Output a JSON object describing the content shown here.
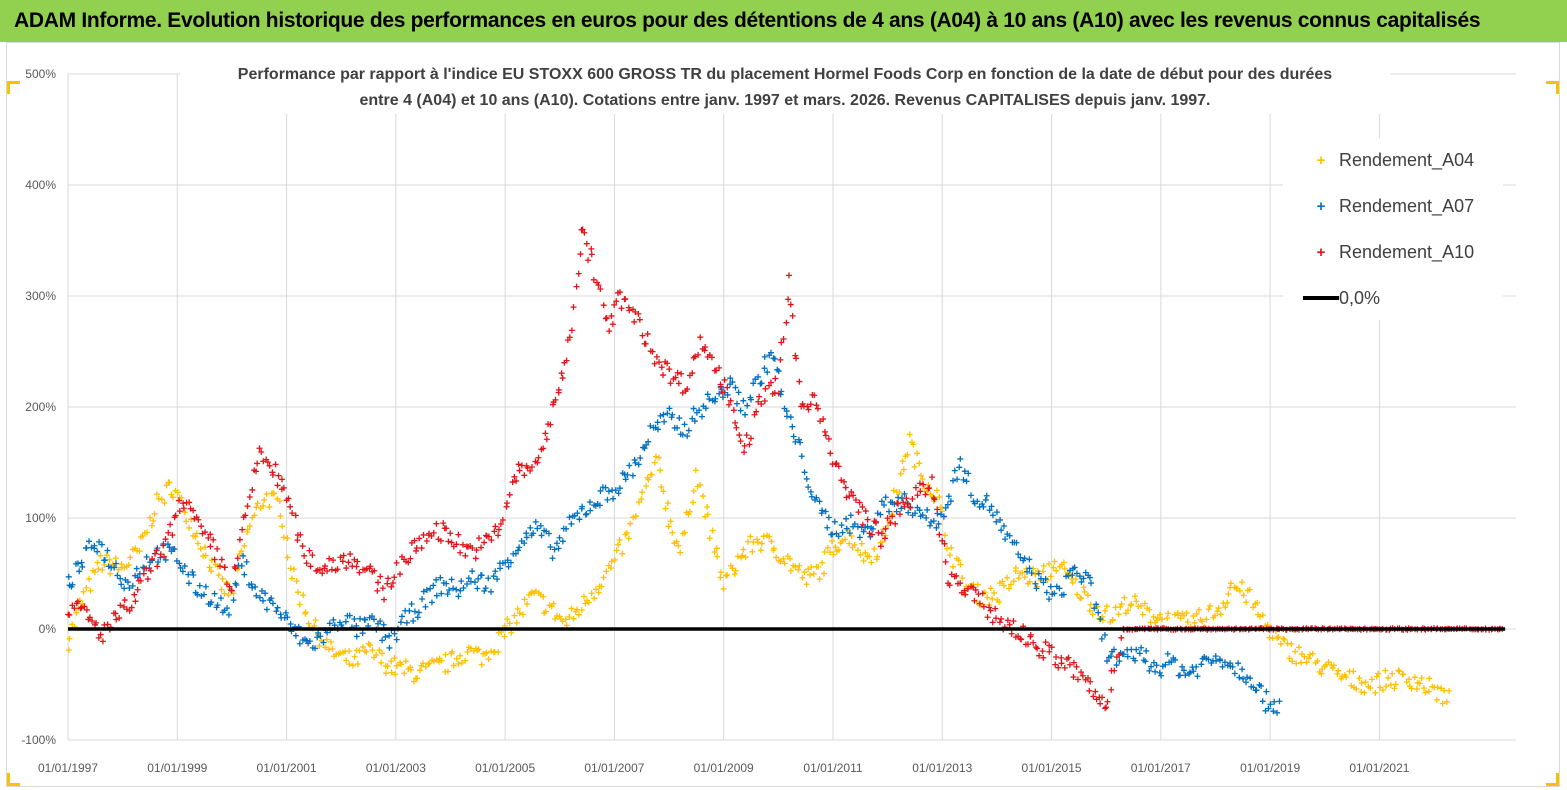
{
  "header": {
    "title": "ADAM Informe. Evolution historique des performances en euros pour des détentions de 4 ans (A04) à 10 ans (A10) avec les revenus connus capitalisés"
  },
  "chart_data": {
    "type": "scatter",
    "title_line1": "Performance par rapport à l'indice EU STOXX 600 GROSS TR  du placement Hormel Foods Corp en fonction de la date de début pour des durées",
    "title_line2": "entre 4 (A04) et 10 ans (A10). Cotations entre janv. 1997 et mars. 2026. Revenus CAPITALISES depuis janv. 1997.",
    "ylim": [
      -100,
      500
    ],
    "y_ticks": [
      -100,
      0,
      100,
      200,
      300,
      400,
      500
    ],
    "y_tick_labels": [
      "-100%",
      "0%",
      "100%",
      "200%",
      "300%",
      "400%",
      "500%"
    ],
    "xlim": [
      1997.0,
      2023.5
    ],
    "x_ticks": [
      1997,
      1999,
      2001,
      2003,
      2005,
      2007,
      2009,
      2011,
      2013,
      2015,
      2017,
      2019,
      2021
    ],
    "x_tick_labels": [
      "01/01/1997",
      "01/01/1999",
      "01/01/2001",
      "01/01/2003",
      "01/01/2005",
      "01/01/2007",
      "01/01/2009",
      "01/01/2011",
      "01/01/2013",
      "01/01/2015",
      "01/01/2017",
      "01/01/2019",
      "01/01/2021"
    ],
    "legend_position": "top-right",
    "series": [
      {
        "name": "Rendement_A04",
        "color": "#ffc000",
        "marker": "+",
        "points": [
          [
            1997.0,
            -10
          ],
          [
            1997.3,
            30
          ],
          [
            1997.6,
            60
          ],
          [
            1998.0,
            55
          ],
          [
            1998.3,
            70
          ],
          [
            1998.6,
            110
          ],
          [
            1998.9,
            130
          ],
          [
            1999.2,
            100
          ],
          [
            1999.5,
            70
          ],
          [
            1999.8,
            40
          ],
          [
            2000.0,
            30
          ],
          [
            2000.3,
            90
          ],
          [
            2000.6,
            120
          ],
          [
            2000.9,
            110
          ],
          [
            2001.1,
            50
          ],
          [
            2001.4,
            10
          ],
          [
            2001.8,
            -20
          ],
          [
            2002.2,
            -30
          ],
          [
            2002.5,
            -20
          ],
          [
            2002.8,
            -30
          ],
          [
            2003.0,
            -35
          ],
          [
            2003.4,
            -40
          ],
          [
            2003.7,
            -35
          ],
          [
            2004.0,
            -30
          ],
          [
            2004.3,
            -20
          ],
          [
            2004.6,
            -25
          ],
          [
            2004.9,
            -10
          ],
          [
            2005.2,
            10
          ],
          [
            2005.5,
            30
          ],
          [
            2005.8,
            20
          ],
          [
            2006.1,
            5
          ],
          [
            2006.4,
            20
          ],
          [
            2006.7,
            40
          ],
          [
            2007.0,
            60
          ],
          [
            2007.3,
            90
          ],
          [
            2007.6,
            130
          ],
          [
            2007.8,
            150
          ],
          [
            2008.0,
            100
          ],
          [
            2008.2,
            70
          ],
          [
            2008.5,
            140
          ],
          [
            2008.8,
            80
          ],
          [
            2009.0,
            40
          ],
          [
            2009.3,
            65
          ],
          [
            2009.6,
            80
          ],
          [
            2009.9,
            75
          ],
          [
            2010.2,
            60
          ],
          [
            2010.5,
            45
          ],
          [
            2010.8,
            55
          ],
          [
            2011.0,
            75
          ],
          [
            2011.3,
            85
          ],
          [
            2011.6,
            65
          ],
          [
            2011.9,
            75
          ],
          [
            2012.2,
            130
          ],
          [
            2012.4,
            170
          ],
          [
            2012.6,
            140
          ],
          [
            2012.9,
            120
          ],
          [
            2013.1,
            80
          ],
          [
            2013.4,
            40
          ],
          [
            2013.7,
            30
          ],
          [
            2014.0,
            30
          ],
          [
            2014.4,
            50
          ],
          [
            2014.8,
            45
          ],
          [
            2015.1,
            60
          ],
          [
            2015.4,
            40
          ],
          [
            2015.8,
            20
          ],
          [
            2016.1,
            10
          ],
          [
            2016.4,
            25
          ],
          [
            2016.7,
            15
          ],
          [
            2017.0,
            10
          ],
          [
            2017.4,
            5
          ],
          [
            2017.8,
            10
          ],
          [
            2018.1,
            20
          ],
          [
            2018.3,
            40
          ],
          [
            2018.6,
            30
          ],
          [
            2018.9,
            5
          ],
          [
            2019.2,
            -15
          ],
          [
            2019.6,
            -25
          ],
          [
            2020.0,
            -35
          ],
          [
            2020.4,
            -45
          ],
          [
            2020.8,
            -50
          ],
          [
            2021.2,
            -45
          ],
          [
            2021.6,
            -45
          ],
          [
            2022.0,
            -55
          ],
          [
            2022.3,
            -65
          ]
        ]
      },
      {
        "name": "Rendement_A07",
        "color": "#0070c0",
        "marker": "+",
        "points": [
          [
            1997.0,
            40
          ],
          [
            1997.2,
            55
          ],
          [
            1997.5,
            80
          ],
          [
            1997.8,
            60
          ],
          [
            1998.1,
            40
          ],
          [
            1998.4,
            60
          ],
          [
            1998.7,
            70
          ],
          [
            1999.0,
            65
          ],
          [
            1999.3,
            40
          ],
          [
            1999.6,
            30
          ],
          [
            1999.9,
            15
          ],
          [
            2000.2,
            60
          ],
          [
            2000.5,
            30
          ],
          [
            2000.8,
            20
          ],
          [
            2001.1,
            0
          ],
          [
            2001.4,
            -15
          ],
          [
            2001.7,
            -5
          ],
          [
            2002.0,
            10
          ],
          [
            2002.3,
            0
          ],
          [
            2002.6,
            5
          ],
          [
            2002.9,
            -10
          ],
          [
            2003.2,
            10
          ],
          [
            2003.5,
            25
          ],
          [
            2003.8,
            40
          ],
          [
            2004.1,
            35
          ],
          [
            2004.4,
            45
          ],
          [
            2004.7,
            40
          ],
          [
            2005.0,
            60
          ],
          [
            2005.3,
            80
          ],
          [
            2005.6,
            90
          ],
          [
            2005.9,
            70
          ],
          [
            2006.2,
            95
          ],
          [
            2006.5,
            110
          ],
          [
            2006.8,
            120
          ],
          [
            2007.1,
            130
          ],
          [
            2007.4,
            150
          ],
          [
            2007.7,
            180
          ],
          [
            2008.0,
            190
          ],
          [
            2008.3,
            180
          ],
          [
            2008.6,
            200
          ],
          [
            2008.9,
            210
          ],
          [
            2009.1,
            220
          ],
          [
            2009.4,
            200
          ],
          [
            2009.7,
            230
          ],
          [
            2009.9,
            250
          ],
          [
            2010.1,
            200
          ],
          [
            2010.4,
            160
          ],
          [
            2010.7,
            110
          ],
          [
            2011.0,
            90
          ],
          [
            2011.3,
            95
          ],
          [
            2011.6,
            85
          ],
          [
            2011.9,
            110
          ],
          [
            2012.2,
            115
          ],
          [
            2012.5,
            110
          ],
          [
            2012.8,
            95
          ],
          [
            2013.1,
            110
          ],
          [
            2013.3,
            150
          ],
          [
            2013.6,
            120
          ],
          [
            2013.9,
            110
          ],
          [
            2014.2,
            80
          ],
          [
            2014.5,
            60
          ],
          [
            2014.8,
            40
          ],
          [
            2015.1,
            30
          ],
          [
            2015.4,
            55
          ],
          [
            2015.7,
            40
          ],
          [
            2016.0,
            -20
          ],
          [
            2016.3,
            -30
          ],
          [
            2016.6,
            -20
          ],
          [
            2016.9,
            -35
          ],
          [
            2017.2,
            -30
          ],
          [
            2017.5,
            -40
          ],
          [
            2017.8,
            -30
          ],
          [
            2018.1,
            -25
          ],
          [
            2018.4,
            -35
          ],
          [
            2018.7,
            -45
          ],
          [
            2018.9,
            -65
          ],
          [
            2019.2,
            -68
          ]
        ]
      },
      {
        "name": "Rendement_A10",
        "color": "#e4131a",
        "marker": "+",
        "points": [
          [
            1997.0,
            20
          ],
          [
            1997.3,
            15
          ],
          [
            1997.6,
            -5
          ],
          [
            1997.9,
            10
          ],
          [
            1998.2,
            25
          ],
          [
            1998.5,
            55
          ],
          [
            1998.8,
            75
          ],
          [
            1999.1,
            120
          ],
          [
            1999.4,
            90
          ],
          [
            1999.7,
            70
          ],
          [
            2000.0,
            40
          ],
          [
            2000.3,
            110
          ],
          [
            2000.5,
            160
          ],
          [
            2000.8,
            140
          ],
          [
            2001.0,
            120
          ],
          [
            2001.3,
            70
          ],
          [
            2001.6,
            55
          ],
          [
            2001.9,
            60
          ],
          [
            2002.2,
            65
          ],
          [
            2002.5,
            50
          ],
          [
            2002.8,
            35
          ],
          [
            2003.1,
            60
          ],
          [
            2003.4,
            75
          ],
          [
            2003.7,
            90
          ],
          [
            2004.0,
            85
          ],
          [
            2004.3,
            70
          ],
          [
            2004.6,
            75
          ],
          [
            2004.9,
            90
          ],
          [
            2005.2,
            140
          ],
          [
            2005.5,
            145
          ],
          [
            2005.8,
            180
          ],
          [
            2006.0,
            220
          ],
          [
            2006.2,
            260
          ],
          [
            2006.4,
            360
          ],
          [
            2006.6,
            330
          ],
          [
            2006.9,
            270
          ],
          [
            2007.1,
            300
          ],
          [
            2007.4,
            280
          ],
          [
            2007.7,
            250
          ],
          [
            2008.0,
            230
          ],
          [
            2008.3,
            220
          ],
          [
            2008.6,
            260
          ],
          [
            2008.9,
            230
          ],
          [
            2009.1,
            210
          ],
          [
            2009.4,
            160
          ],
          [
            2009.7,
            210
          ],
          [
            2010.0,
            220
          ],
          [
            2010.2,
            310
          ],
          [
            2010.4,
            200
          ],
          [
            2010.7,
            210
          ],
          [
            2011.0,
            150
          ],
          [
            2011.3,
            120
          ],
          [
            2011.6,
            100
          ],
          [
            2011.9,
            80
          ],
          [
            2012.2,
            110
          ],
          [
            2012.5,
            120
          ],
          [
            2012.8,
            130
          ],
          [
            2013.1,
            50
          ],
          [
            2013.4,
            35
          ],
          [
            2013.7,
            25
          ],
          [
            2014.0,
            10
          ],
          [
            2014.3,
            0
          ],
          [
            2014.6,
            -10
          ],
          [
            2014.9,
            -20
          ],
          [
            2015.2,
            -30
          ],
          [
            2015.5,
            -40
          ],
          [
            2015.8,
            -60
          ],
          [
            2016.0,
            -70
          ],
          [
            2016.3,
            0
          ],
          [
            2017.0,
            0
          ],
          [
            2018.0,
            0
          ],
          [
            2019.0,
            0
          ],
          [
            2020.0,
            0
          ],
          [
            2021.0,
            0
          ],
          [
            2022.0,
            0
          ],
          [
            2023.0,
            0
          ],
          [
            2023.3,
            0
          ]
        ]
      },
      {
        "name": "0,0%",
        "color": "#000000",
        "marker": "line",
        "points": [
          [
            1997.0,
            0
          ],
          [
            2023.3,
            0
          ]
        ]
      }
    ]
  }
}
